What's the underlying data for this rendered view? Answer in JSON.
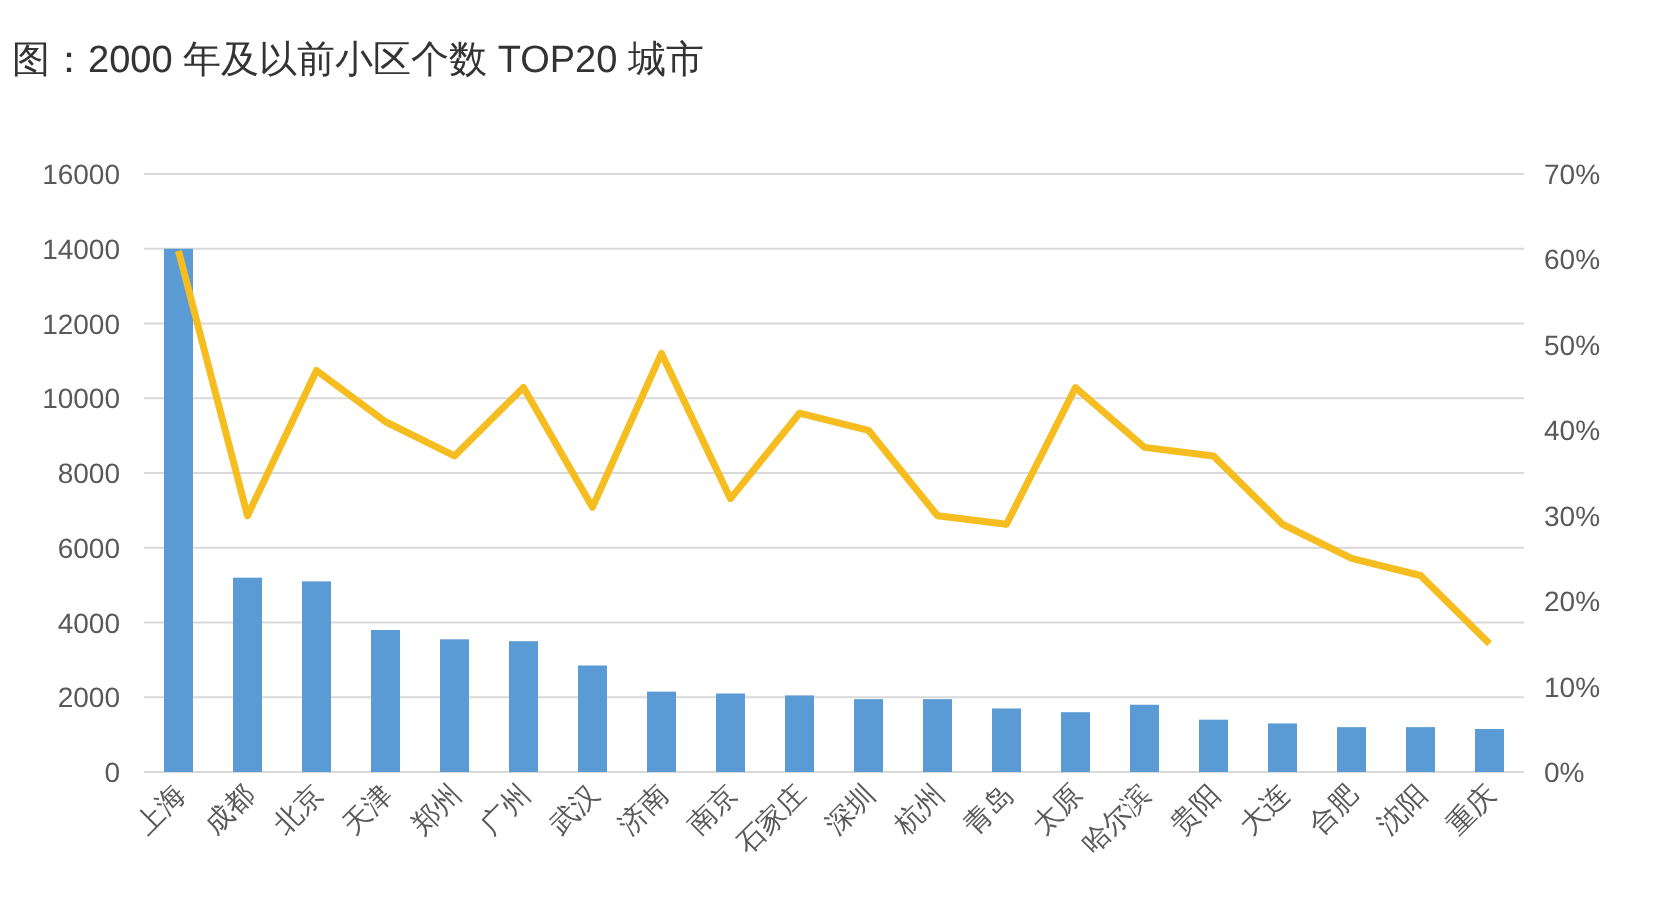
{
  "chart_data": {
    "type": "bar",
    "title": "图：2000 年及以前小区个数 TOP20 城市",
    "categories": [
      "上海",
      "成都",
      "北京",
      "天津",
      "郑州",
      "广州",
      "武汉",
      "济南",
      "南京",
      "石家庄",
      "深圳",
      "杭州",
      "青岛",
      "太原",
      "哈尔滨",
      "贵阳",
      "大连",
      "合肥",
      "沈阳",
      "重庆"
    ],
    "series": [
      {
        "color": "#5b9bd5",
        "values": [
          14000,
          5200,
          5100,
          3800,
          3550,
          3500,
          2850,
          2150,
          2100,
          2050,
          1950,
          1950,
          1700,
          1600,
          1800,
          1400,
          1300,
          1200,
          1200,
          1150
        ]
      },
      {
        "type": "line",
        "axis": "y2",
        "color": "#f5bd1f",
        "values": [
          61,
          30,
          47,
          41,
          37,
          45,
          31,
          49,
          32,
          42,
          40,
          30,
          29,
          45,
          38,
          37,
          29,
          25,
          23,
          15
        ]
      }
    ],
    "ylim": [
      0,
      16000
    ],
    "yticks": [
      0,
      2000,
      4000,
      6000,
      8000,
      10000,
      12000,
      14000,
      16000
    ],
    "y2lim": [
      0,
      70
    ],
    "y2ticks": [
      {
        "value": 0,
        "label": "0%"
      },
      {
        "value": 10,
        "label": "10%"
      },
      {
        "value": 20,
        "label": "20%"
      },
      {
        "value": 30,
        "label": "30%"
      },
      {
        "value": 40,
        "label": "40%"
      },
      {
        "value": 50,
        "label": "50%"
      },
      {
        "value": 60,
        "label": "60%"
      },
      {
        "value": 70,
        "label": "70%"
      }
    ],
    "grid": "y",
    "marker": "none",
    "line_style": "solid"
  }
}
